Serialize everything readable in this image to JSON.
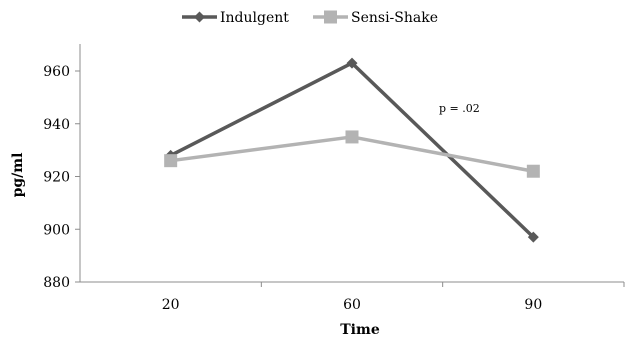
{
  "chart_data": {
    "type": "line",
    "title": "",
    "xlabel": "Time",
    "ylabel": "pg/ml",
    "categories": [
      "20",
      "60",
      "90"
    ],
    "ylim": [
      880,
      960
    ],
    "yticks": [
      880,
      900,
      920,
      940,
      960
    ],
    "grid": false,
    "legend_position": "top",
    "series": [
      {
        "name": "Indulgent",
        "values": [
          928,
          963,
          897
        ],
        "color": "#595959",
        "marker": "diamond"
      },
      {
        "name": "Sensi-Shake",
        "values": [
          926,
          935,
          922
        ],
        "color": "#b3b3b3",
        "marker": "square"
      }
    ],
    "annotations": [
      {
        "text": "p = .02",
        "near_category": "60"
      }
    ]
  }
}
